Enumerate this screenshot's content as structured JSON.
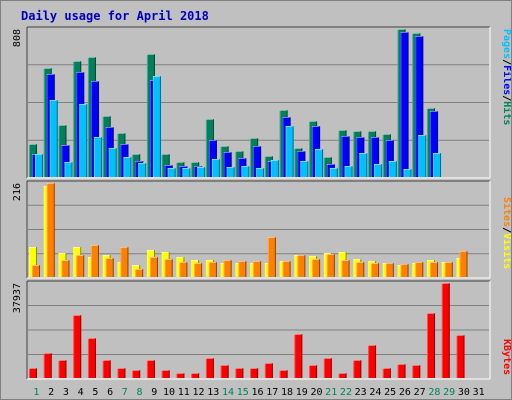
{
  "chart_data": {
    "type": "bar",
    "title": "Daily usage for April 2018",
    "days": [
      "1",
      "2",
      "3",
      "4",
      "5",
      "6",
      "7",
      "8",
      "9",
      "10",
      "11",
      "12",
      "13",
      "14",
      "15",
      "16",
      "17",
      "18",
      "19",
      "20",
      "21",
      "22",
      "23",
      "24",
      "25",
      "26",
      "27",
      "28",
      "29",
      "30",
      "31"
    ],
    "weekend_days": [
      "1",
      "7",
      "8",
      "14",
      "15",
      "21",
      "22",
      "28",
      "29"
    ],
    "panels": [
      {
        "ymax_label": "808",
        "ymax": 808,
        "legend": [
          {
            "text": "Pages",
            "color": "#00c0ff"
          },
          {
            "text": "/",
            "color": "#000000"
          },
          {
            "text": "Files",
            "color": "#0000ff"
          },
          {
            "text": "/",
            "color": "#000000"
          },
          {
            "text": "Hits",
            "color": "#00805c"
          }
        ],
        "series": [
          {
            "name": "Hits",
            "color": "#00805c",
            "values": [
              178,
              594,
              285,
              632,
              654,
              335,
              238,
              124,
              674,
              128,
              83,
              82,
              314,
              171,
              143,
              211,
              117,
              364,
              161,
              308,
              109,
              255,
              251,
              253,
              236,
              806,
              788,
              377,
              0,
              0,
              0
            ]
          },
          {
            "name": "Files",
            "color": "#0000ff",
            "values": [
              128,
              560,
              175,
              571,
              525,
              275,
              180,
              85,
              532,
              65,
              60,
              58,
              200,
              135,
              105,
              170,
              90,
              330,
              140,
              280,
              70,
              224,
              220,
              220,
              200,
              790,
              770,
              360,
              0,
              0,
              0
            ]
          },
          {
            "name": "Pages",
            "color": "#00c0ff",
            "values": [
              125,
              420,
              80,
              400,
              220,
              160,
              110,
              75,
              550,
              50,
              50,
              55,
              100,
              55,
              60,
              50,
              95,
              280,
              90,
              155,
              50,
              60,
              130,
              70,
              90,
              45,
              230,
              130,
              0,
              0,
              0
            ]
          }
        ]
      },
      {
        "ymax_label": "216",
        "ymax": 216,
        "legend": [
          {
            "text": "Sites",
            "color": "#ff8000"
          },
          {
            "text": "/",
            "color": "#000000"
          },
          {
            "text": "Visits",
            "color": "#ffff00"
          }
        ],
        "series": [
          {
            "name": "Visits",
            "color": "#ffff00",
            "values": [
              70,
              210,
              55,
              70,
              45,
              50,
              35,
              28,
              62,
              58,
              46,
              40,
              38,
              32,
              33,
              33,
              33,
              37,
              50,
              48,
              55,
              58,
              41,
              36,
              33,
              28,
              32,
              38,
              34,
              44,
              0
            ]
          },
          {
            "name": "Sites",
            "color": "#ff8000",
            "values": [
              28,
              216,
              40,
              50,
              74,
              44,
              70,
              18,
              45,
              42,
              35,
              33,
              35,
              40,
              37,
              37,
              91,
              36,
              51,
              42,
              52,
              38,
              35,
              33,
              32,
              31,
              35,
              35,
              34,
              60,
              0
            ]
          }
        ]
      },
      {
        "ymax_label": "37937",
        "ymax": 37937,
        "legend": [
          {
            "text": "KBytes",
            "color": "#ff0000"
          }
        ],
        "series": [
          {
            "name": "KBytes",
            "color": "#ff0000",
            "values": [
              4000,
              10000,
              7000,
              25000,
              16000,
              7000,
              4000,
              3000,
              7000,
              3000,
              2000,
              2000,
              8000,
              5000,
              4000,
              4000,
              6000,
              3000,
              17500,
              5000,
              8000,
              2000,
              7000,
              13000,
              4000,
              5500,
              5000,
              26000,
              38000,
              17000,
              0
            ]
          }
        ]
      }
    ]
  }
}
